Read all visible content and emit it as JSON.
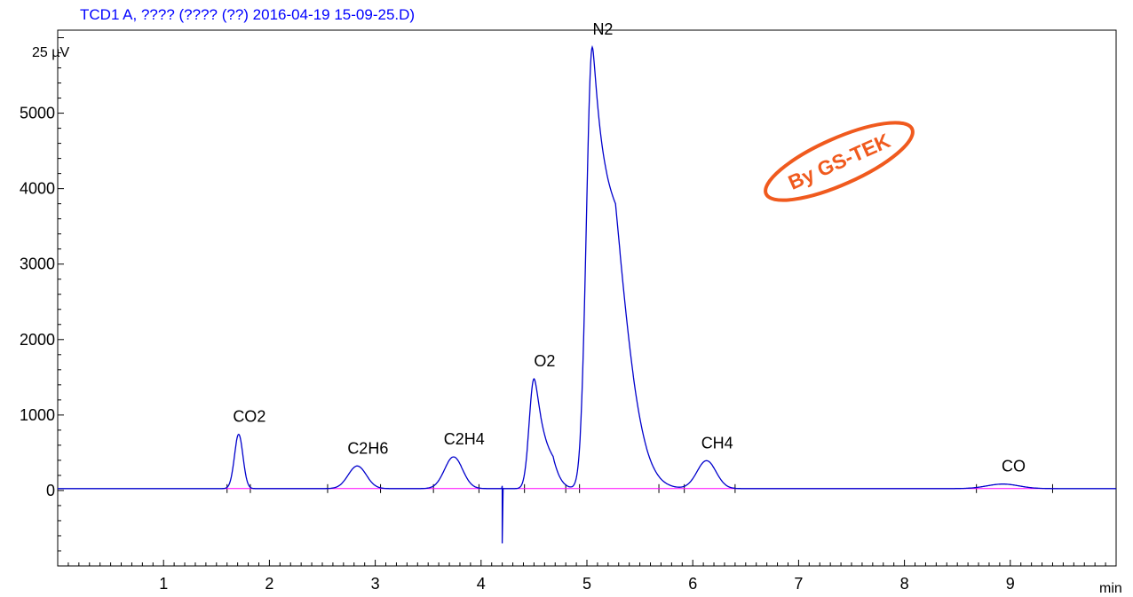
{
  "chart_data": {
    "type": "line",
    "title": "TCD1 A, ???? (???? (??) 2016-04-19 15-09-25.D)",
    "xlabel": "min",
    "ylabel": "25 µV",
    "xlim": [
      0,
      10.0
    ],
    "ylim": [
      -1000,
      6100
    ],
    "x_ticks": [
      1,
      2,
      3,
      4,
      5,
      6,
      7,
      8,
      9
    ],
    "y_ticks": [
      0,
      1000,
      2000,
      3000,
      4000,
      5000
    ],
    "baseline": 25,
    "peaks": [
      {
        "name": "CO2",
        "rt": 1.71,
        "height": 720,
        "width": 0.04,
        "tail": 0
      },
      {
        "name": "C2H6",
        "rt": 2.83,
        "height": 300,
        "width": 0.085,
        "tail": 0
      },
      {
        "name": "C2H4",
        "rt": 3.74,
        "height": 420,
        "width": 0.085,
        "tail": 0
      },
      {
        "name": "O2",
        "rt": 4.5,
        "height": 1455,
        "width": 0.045,
        "tail": 0.07
      },
      {
        "name": "N2",
        "rt": 5.05,
        "height": 5850,
        "width": 0.055,
        "tail": 0.18
      },
      {
        "name": "CH4",
        "rt": 6.13,
        "height": 370,
        "width": 0.09,
        "tail": 0
      },
      {
        "name": "CO",
        "rt": 8.93,
        "height": 60,
        "width": 0.15,
        "tail": 0
      }
    ],
    "disturbance": {
      "rt": 4.2,
      "min": -700,
      "max": 60
    },
    "integration_marks": [
      1.6,
      1.82,
      2.55,
      3.05,
      3.55,
      3.98,
      4.41,
      4.8,
      4.93,
      5.68,
      5.92,
      6.4,
      8.68,
      9.4
    ],
    "colors": {
      "signal": "#0000cc",
      "baseline": "#ff00ff",
      "title": "#0000ff"
    }
  },
  "watermark": {
    "text": "By GS-TEK",
    "color": "#f05a1e"
  }
}
